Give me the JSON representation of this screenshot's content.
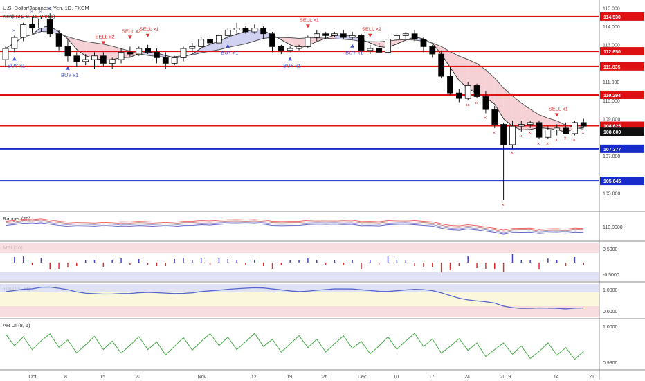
{
  "header": {
    "symbol_title": "U.S. Dollar/Japanese Yen, 1D, FXCM",
    "indicator_label": "Kenji (21, 8, 11, 0.015)"
  },
  "chart_data": {
    "type": "candlestick",
    "title": "U.S. Dollar/Japanese Yen, 1D, FXCM",
    "y_ticks": [
      "115.000",
      "114.000",
      "113.000",
      "111.000",
      "110.000",
      "109.000",
      "107.000",
      "105.000"
    ],
    "ylim": [
      104.0,
      115.2
    ],
    "x_ticks": [
      "Oct",
      "8",
      "15",
      "22",
      "Nov",
      "12",
      "19",
      "26",
      "Dec",
      "10",
      "17",
      "24",
      "2019",
      "14",
      "21"
    ],
    "levels": [
      {
        "label": "114.530",
        "value": 114.53,
        "color": "#d11"
      },
      {
        "label": "112.650",
        "value": 112.65,
        "color": "#d11"
      },
      {
        "label": "111.835",
        "value": 111.835,
        "color": "#d11"
      },
      {
        "label": "110.294",
        "value": 110.294,
        "color": "#d11"
      },
      {
        "label": "108.625",
        "value": 108.625,
        "color": "#d11"
      },
      {
        "label": "107.377",
        "value": 107.377,
        "color": "#1a2bcc"
      },
      {
        "label": "105.645",
        "value": 105.645,
        "color": "#1a2bcc"
      }
    ],
    "price_label": {
      "label": "108.600",
      "value": 108.6,
      "color": "#111"
    },
    "candles": [
      [
        112.2,
        112.9,
        111.8,
        112.8
      ],
      [
        112.8,
        113.5,
        112.6,
        113.4
      ],
      [
        113.4,
        114.2,
        113.2,
        114.1
      ],
      [
        114.1,
        114.5,
        113.6,
        113.9
      ],
      [
        113.9,
        114.5,
        113.7,
        114.4
      ],
      [
        114.4,
        114.7,
        113.4,
        113.6
      ],
      [
        113.6,
        113.8,
        112.7,
        112.9
      ],
      [
        112.9,
        113.3,
        112.1,
        112.4
      ],
      [
        112.4,
        112.6,
        111.8,
        112.1
      ],
      [
        112.1,
        112.5,
        111.9,
        112.2
      ],
      [
        112.2,
        112.6,
        111.7,
        112.4
      ],
      [
        112.4,
        112.6,
        111.8,
        112.0
      ],
      [
        112.0,
        112.3,
        111.7,
        112.2
      ],
      [
        112.2,
        112.8,
        112.0,
        112.6
      ],
      [
        112.6,
        112.9,
        112.3,
        112.5
      ],
      [
        112.5,
        112.9,
        112.4,
        112.8
      ],
      [
        112.8,
        113.0,
        112.5,
        112.6
      ],
      [
        112.6,
        112.8,
        112.0,
        112.3
      ],
      [
        112.3,
        112.6,
        111.7,
        112.0
      ],
      [
        112.0,
        112.4,
        111.9,
        112.3
      ],
      [
        112.3,
        112.9,
        112.1,
        112.8
      ],
      [
        112.8,
        113.1,
        112.6,
        112.9
      ],
      [
        112.9,
        113.4,
        112.8,
        113.3
      ],
      [
        113.3,
        113.4,
        113.0,
        113.1
      ],
      [
        113.1,
        113.6,
        113.0,
        113.5
      ],
      [
        113.5,
        113.9,
        113.3,
        113.8
      ],
      [
        113.8,
        114.2,
        113.6,
        113.9
      ],
      [
        113.9,
        114.0,
        113.6,
        113.7
      ],
      [
        113.7,
        114.1,
        113.6,
        113.9
      ],
      [
        113.9,
        114.0,
        113.3,
        113.6
      ],
      [
        113.6,
        113.7,
        112.6,
        112.9
      ],
      [
        112.9,
        113.0,
        112.5,
        112.7
      ],
      [
        112.7,
        112.9,
        112.6,
        112.8
      ],
      [
        112.8,
        113.0,
        112.7,
        112.9
      ],
      [
        112.9,
        113.5,
        112.8,
        113.4
      ],
      [
        113.4,
        113.8,
        113.2,
        113.6
      ],
      [
        113.6,
        113.7,
        113.3,
        113.5
      ],
      [
        113.5,
        113.7,
        113.4,
        113.6
      ],
      [
        113.6,
        113.8,
        113.3,
        113.4
      ],
      [
        113.4,
        113.7,
        113.3,
        113.5
      ],
      [
        113.5,
        113.6,
        112.5,
        112.7
      ],
      [
        112.7,
        113.0,
        112.5,
        112.8
      ],
      [
        112.8,
        113.1,
        112.6,
        112.6
      ],
      [
        112.6,
        113.4,
        112.5,
        113.3
      ],
      [
        113.3,
        113.6,
        113.2,
        113.5
      ],
      [
        113.5,
        113.7,
        113.3,
        113.6
      ],
      [
        113.6,
        113.8,
        113.2,
        113.3
      ],
      [
        113.3,
        113.4,
        112.6,
        112.9
      ],
      [
        112.9,
        113.0,
        112.3,
        112.5
      ],
      [
        112.5,
        112.7,
        111.2,
        111.3
      ],
      [
        111.3,
        111.8,
        110.3,
        110.4
      ],
      [
        110.4,
        110.6,
        109.9,
        110.1
      ],
      [
        110.1,
        111.0,
        110.0,
        110.8
      ],
      [
        110.8,
        110.9,
        110.1,
        110.2
      ],
      [
        110.2,
        110.5,
        109.3,
        109.5
      ],
      [
        109.5,
        109.7,
        108.5,
        108.7
      ],
      [
        108.7,
        108.8,
        104.6,
        107.6
      ],
      [
        107.6,
        108.9,
        107.4,
        108.6
      ],
      [
        108.6,
        108.9,
        108.3,
        108.7
      ],
      [
        108.7,
        108.9,
        108.5,
        108.8
      ],
      [
        108.8,
        108.9,
        107.9,
        108.0
      ],
      [
        108.0,
        108.6,
        107.9,
        108.4
      ],
      [
        108.4,
        108.7,
        108.1,
        108.5
      ],
      [
        108.5,
        108.8,
        108.2,
        108.2
      ],
      [
        108.2,
        108.9,
        108.1,
        108.8
      ],
      [
        108.8,
        109.0,
        108.5,
        108.6
      ]
    ],
    "signals": [
      {
        "label": "SELL x2",
        "index": 11
      },
      {
        "label": "SELL x2",
        "index": 14
      },
      {
        "label": "SELL x1",
        "index": 16
      },
      {
        "label": "SELL x1",
        "index": 34
      },
      {
        "label": "SELL x2",
        "index": 41
      },
      {
        "label": "SELL x1",
        "index": 62
      }
    ],
    "buys": [
      {
        "label": "BUY x1",
        "index": 1
      },
      {
        "label": "BUY x1",
        "index": 7
      },
      {
        "label": "BUY x1",
        "index": 25
      },
      {
        "label": "BUY x1",
        "index": 32
      },
      {
        "label": "BUY x1",
        "index": 39
      }
    ],
    "panels": [
      {
        "label": "Ranger (20)",
        "ticks": [
          "110.0000"
        ]
      },
      {
        "label": "MSI (10)",
        "ticks": [
          "0.5000",
          "-0.5000"
        ]
      },
      {
        "label": "TDI (13, 21)",
        "ticks": [
          "1.0000",
          "0.0000"
        ]
      },
      {
        "label": "AR DI (8, 1)",
        "ticks": [
          "1.0000",
          "0.9900"
        ]
      }
    ]
  },
  "colors": {
    "bull": "#ffffff",
    "bear": "#000000",
    "up_band": "#c9c9ee",
    "down_band": "#f3c9cf",
    "level_red": "#d11",
    "level_blue": "#1a2bcc",
    "sell": "#d33",
    "buy": "#4455cc"
  }
}
